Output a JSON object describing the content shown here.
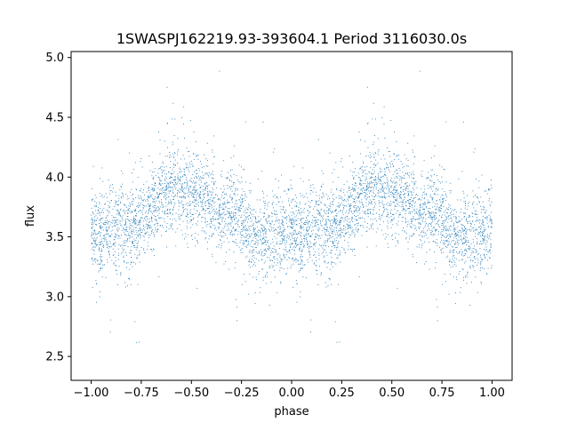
{
  "chart_data": {
    "type": "scatter",
    "title": "1SWASPJ162219.93-393604.1 Period 3116030.0s",
    "xlabel": "phase",
    "ylabel": "flux",
    "xlim": [
      -1.1,
      1.1
    ],
    "ylim": [
      2.3,
      5.05
    ],
    "x_ticks": [
      -1.0,
      -0.75,
      -0.5,
      -0.25,
      0.0,
      0.25,
      0.5,
      0.75,
      1.0
    ],
    "x_tick_labels": [
      "−1.00",
      "−0.75",
      "−0.50",
      "−0.25",
      "0.00",
      "0.25",
      "0.50",
      "0.75",
      "1.00"
    ],
    "y_ticks": [
      2.5,
      3.0,
      3.5,
      4.0,
      4.5,
      5.0
    ],
    "y_tick_labels": [
      "2.5",
      "3.0",
      "3.5",
      "4.0",
      "4.5",
      "5.0"
    ],
    "grid": false,
    "legend": "none",
    "marker_color": "#1f77b4",
    "phase_range": [
      -1.0,
      1.0
    ],
    "profile": {
      "phase": [
        0.0,
        0.05,
        0.1,
        0.15,
        0.2,
        0.25,
        0.3,
        0.35,
        0.4,
        0.45,
        0.5,
        0.55,
        0.6,
        0.65,
        0.7,
        0.75,
        0.8,
        0.85,
        0.9,
        0.95,
        1.0
      ],
      "median_flux": [
        3.55,
        3.5,
        3.58,
        3.6,
        3.55,
        3.62,
        3.7,
        3.85,
        3.92,
        3.92,
        3.85,
        3.8,
        3.75,
        3.7,
        3.72,
        3.68,
        3.5,
        3.5,
        3.52,
        3.5,
        3.55
      ],
      "scatter": [
        0.18,
        0.18,
        0.18,
        0.19,
        0.19,
        0.19,
        0.18,
        0.17,
        0.17,
        0.16,
        0.17,
        0.17,
        0.17,
        0.18,
        0.18,
        0.18,
        0.18,
        0.19,
        0.19,
        0.19,
        0.18
      ]
    }
  }
}
